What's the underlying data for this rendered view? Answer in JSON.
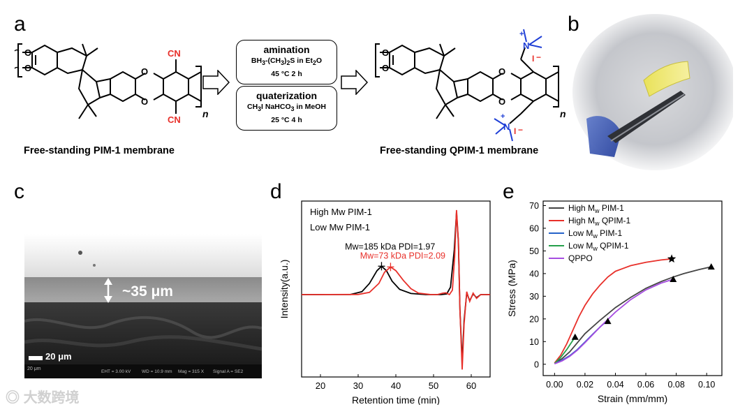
{
  "panels": {
    "a": {
      "letter": "a",
      "boxes": {
        "amination": {
          "title": "amination",
          "line1_pre": "BH",
          "line1_sub1": "3",
          "line1_mid": "-(CH",
          "line1_sub2": "3",
          "line1_mid2": ")",
          "line1_sub3": "2",
          "line1_post": "S in Et",
          "line1_sub4": "2",
          "line1_end": "O",
          "line2": "45 °C   2 h"
        },
        "quaterization": {
          "title": "quaterization",
          "line1_pre": "CH",
          "line1_sub1": "3",
          "line1_post": "I NaHCO",
          "line1_sub2": "3",
          "line1_end": " in MeOH",
          "line2": "25 °C   4 h"
        }
      },
      "left_label": "Free-standing PIM-1 membrane",
      "right_label": "Free-standing QPIM-1 membrane",
      "cn_label": "CN",
      "n_label": "n",
      "o_label": "O",
      "n_plus": "N",
      "plus": "+",
      "iodide": "I",
      "minus": "−"
    },
    "b": {
      "letter": "b"
    },
    "c": {
      "letter": "c",
      "thickness": "~35 μm",
      "scale": "20 μm",
      "sem_footer": [
        "EHT = 3.00 kV",
        "WD = 10.9 mm",
        "Mag = 315 X",
        "Signal A = SE2"
      ],
      "sem_scale_small": "20 μm"
    },
    "d": {
      "letter": "d"
    },
    "e": {
      "letter": "e"
    }
  },
  "watermark": "大数跨境",
  "colors": {
    "black": "#000000",
    "red": "#e8302a",
    "blue": "#2563c9",
    "green": "#25a04a",
    "purple": "#a64de0",
    "cn_red": "#e8302a",
    "cation_blue": "#1f3fd6",
    "gray": "#444444"
  },
  "chart_data": [
    {
      "id": "d",
      "type": "line",
      "title": "",
      "xlabel": "Retention time (min)",
      "ylabel": "Intensity(a.u.)",
      "xlim": [
        15,
        65
      ],
      "xticks": [
        20,
        30,
        40,
        50,
        60
      ],
      "ylim": [
        -1.1,
        1.25
      ],
      "legend": [
        "High Mw PIM-1",
        "Low Mw PIM-1"
      ],
      "annotations": [
        {
          "text": "Mw=185 kDa PDI=1.97",
          "series": "High Mw PIM-1"
        },
        {
          "text": "Mw=73 kDa PDI=2.09",
          "series": "Low Mw PIM-1"
        }
      ],
      "series": [
        {
          "name": "High Mw PIM-1",
          "color": "black",
          "peak_x": 36.2,
          "peak_y": 0.38,
          "points": [
            [
              15,
              0
            ],
            [
              28,
              0.002
            ],
            [
              31,
              0.04
            ],
            [
              33,
              0.15
            ],
            [
              35,
              0.32
            ],
            [
              36.2,
              0.38
            ],
            [
              37.5,
              0.32
            ],
            [
              39,
              0.18
            ],
            [
              41,
              0.07
            ],
            [
              44,
              0.015
            ],
            [
              48,
              0
            ],
            [
              52,
              0
            ],
            [
              53.5,
              0.01
            ],
            [
              54.5,
              0.1
            ],
            [
              55.5,
              0.6
            ],
            [
              56.1,
              1.1
            ],
            [
              56.6,
              0.7
            ],
            [
              57,
              -0.2
            ],
            [
              57.6,
              -0.9
            ],
            [
              58.1,
              -0.35
            ],
            [
              58.8,
              0.02
            ],
            [
              59.6,
              -0.08
            ],
            [
              60.5,
              0.01
            ],
            [
              61.4,
              -0.04
            ],
            [
              62.5,
              0
            ],
            [
              65,
              0
            ]
          ]
        },
        {
          "name": "Low Mw PIM-1",
          "color": "red",
          "peak_x": 38.6,
          "peak_y": 0.37,
          "points": [
            [
              15,
              0
            ],
            [
              30,
              0.002
            ],
            [
              33,
              0.03
            ],
            [
              35.5,
              0.15
            ],
            [
              37,
              0.3
            ],
            [
              38.6,
              0.37
            ],
            [
              40,
              0.32
            ],
            [
              42,
              0.19
            ],
            [
              44,
              0.08
            ],
            [
              46,
              0.02
            ],
            [
              49,
              0.002
            ],
            [
              51,
              0
            ],
            [
              52.5,
              0.02
            ],
            [
              53.3,
              0.025
            ],
            [
              54.2,
              0
            ],
            [
              55,
              0.06
            ],
            [
              55.6,
              0.5
            ],
            [
              56.1,
              1.13
            ],
            [
              56.6,
              0.72
            ],
            [
              57,
              -0.2
            ],
            [
              57.6,
              -1.0
            ],
            [
              58.1,
              -0.4
            ],
            [
              58.8,
              0.04
            ],
            [
              59.6,
              -0.09
            ],
            [
              60.5,
              0.02
            ],
            [
              61.4,
              -0.05
            ],
            [
              62.5,
              0
            ],
            [
              65,
              0
            ]
          ]
        }
      ]
    },
    {
      "id": "e",
      "type": "line",
      "title": "",
      "xlabel": "Strain (mm/mm)",
      "ylabel": "Stress (MPa)",
      "xlim": [
        -0.0075,
        0.11
      ],
      "xticks": [
        0.0,
        0.02,
        0.04,
        0.06,
        0.08,
        0.1
      ],
      "xtick_labels": [
        "0.00",
        "0.02",
        "0.04",
        "0.06",
        "0.08",
        "0.10"
      ],
      "ylim": [
        -5,
        72
      ],
      "yticks": [
        0,
        10,
        20,
        30,
        40,
        50,
        60,
        70
      ],
      "legend_position": "top-left",
      "series": [
        {
          "name": "High Mw PIM-1",
          "legend_main": "High M",
          "legend_sub": "w",
          "legend_post": " PIM-1",
          "color": "gray",
          "marker": "triangle",
          "points": [
            [
              0,
              0.5
            ],
            [
              0.005,
              2.5
            ],
            [
              0.01,
              5.5
            ],
            [
              0.015,
              9.5
            ],
            [
              0.02,
              13.5
            ],
            [
              0.03,
              19.5
            ],
            [
              0.04,
              25
            ],
            [
              0.05,
              29.5
            ],
            [
              0.06,
              33.5
            ],
            [
              0.07,
              36.5
            ],
            [
              0.078,
              38.5
            ],
            [
              0.085,
              40
            ],
            [
              0.095,
              41.8
            ],
            [
              0.103,
              43
            ]
          ],
          "marker_points": [
            [
              0.078,
              37.5
            ],
            [
              0.103,
              43
            ]
          ]
        },
        {
          "name": "High Mw QPIM-1",
          "legend_main": "High M",
          "legend_sub": "w",
          "legend_post": " QPIM-1",
          "color": "red",
          "marker": "star",
          "points": [
            [
              0,
              0.5
            ],
            [
              0.004,
              4
            ],
            [
              0.008,
              9
            ],
            [
              0.012,
              15
            ],
            [
              0.016,
              21
            ],
            [
              0.02,
              26
            ],
            [
              0.025,
              31
            ],
            [
              0.03,
              35
            ],
            [
              0.035,
              38.5
            ],
            [
              0.04,
              41
            ],
            [
              0.05,
              43.5
            ],
            [
              0.06,
              45
            ],
            [
              0.07,
              46
            ],
            [
              0.077,
              46.5
            ]
          ],
          "marker_points": [
            [
              0.077,
              46.5
            ]
          ]
        },
        {
          "name": "Low Mw PIM-1",
          "legend_main": "Low M",
          "legend_sub": "w",
          "legend_post": " PIM-1",
          "color": "blue",
          "marker": "none",
          "points": [
            [
              0,
              0.3
            ],
            [
              0.005,
              1.8
            ],
            [
              0.01,
              3.8
            ],
            [
              0.015,
              6.5
            ],
            [
              0.02,
              9.8
            ],
            [
              0.025,
              13.2
            ],
            [
              0.03,
              16.5
            ],
            [
              0.035,
              19.5
            ]
          ],
          "marker_points": []
        },
        {
          "name": "Low Mw QPIM-1",
          "legend_main": "Low M",
          "legend_sub": "w",
          "legend_post": " QPIM-1",
          "color": "green",
          "marker": "triangle",
          "points": [
            [
              0,
              0.3
            ],
            [
              0.004,
              3
            ],
            [
              0.008,
              6.5
            ],
            [
              0.011,
              9.5
            ],
            [
              0.0135,
              12
            ]
          ],
          "marker_points": [
            [
              0.0135,
              12
            ],
            [
              0.035,
              19
            ]
          ]
        },
        {
          "name": "QPPO",
          "legend_main": "QPPO",
          "legend_sub": "",
          "legend_post": "",
          "color": "purple",
          "marker": "none",
          "points": [
            [
              0,
              0.2
            ],
            [
              0.005,
              1.5
            ],
            [
              0.01,
              3.5
            ],
            [
              0.015,
              6.2
            ],
            [
              0.02,
              9.5
            ],
            [
              0.03,
              16.5
            ],
            [
              0.04,
              23
            ],
            [
              0.05,
              28.5
            ],
            [
              0.06,
              32.8
            ],
            [
              0.07,
              35.8
            ],
            [
              0.078,
              37.5
            ]
          ],
          "marker_points": []
        }
      ]
    }
  ]
}
